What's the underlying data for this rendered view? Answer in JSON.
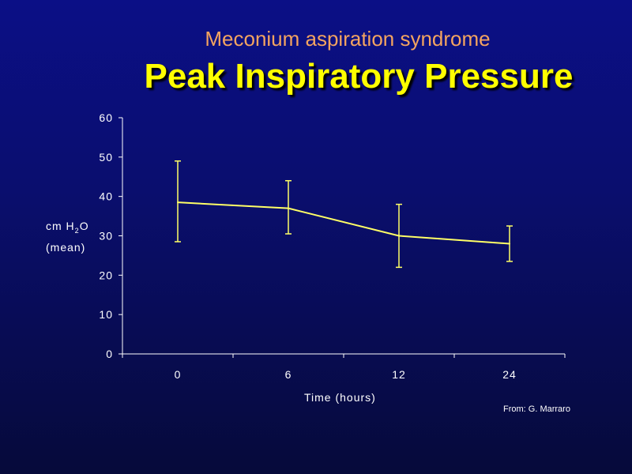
{
  "chart_data": {
    "type": "line",
    "subtitle": "Meconium aspiration syndrome",
    "title": "Peak Inspiratory Pressure",
    "ylabel_prefix": "cm H",
    "ylabel_sub": "2",
    "ylabel_suffix": "O",
    "ylabel_line2": "(mean)",
    "xlabel": "Time (hours)",
    "categories": [
      "0",
      "6",
      "12",
      "24"
    ],
    "values": [
      38.5,
      37,
      30,
      28
    ],
    "error_upper": [
      49,
      44,
      38,
      32.5
    ],
    "error_lower": [
      28.5,
      30.5,
      22,
      23.5
    ],
    "yticks": [
      0,
      10,
      20,
      30,
      40,
      50,
      60
    ],
    "ylim": [
      0,
      60
    ],
    "grid": false,
    "line_color": "#ffff66",
    "credit": "From: G. Marraro"
  }
}
